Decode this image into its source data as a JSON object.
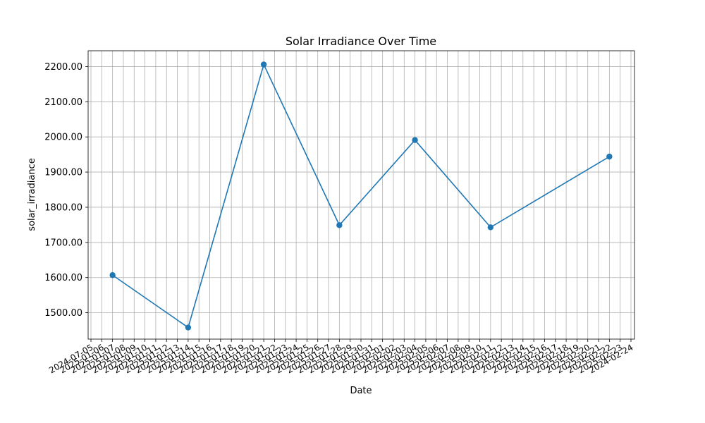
{
  "chart_data": {
    "type": "line",
    "title": "Solar Irradiance Over Time",
    "xlabel": "Date",
    "ylabel": "solar_irradiance",
    "ylim": [
      1425,
      2245
    ],
    "yticks": [
      1500,
      1600,
      1700,
      1800,
      1900,
      2000,
      2100,
      2200
    ],
    "ytick_labels": [
      "1500.00",
      "1600.00",
      "1700.00",
      "1800.00",
      "1900.00",
      "2000.00",
      "2100.00",
      "2200.00"
    ],
    "grid": true,
    "marker": "circle",
    "line_color": "#1f77b4",
    "x_categories": [
      "2024-07-05",
      "2025-01-06",
      "2025-01-07",
      "2025-01-08",
      "2025-01-09",
      "2025-01-10",
      "2025-01-11",
      "2025-01-12",
      "2025-01-13",
      "2025-01-14",
      "2025-01-15",
      "2025-01-16",
      "2025-01-17",
      "2025-01-18",
      "2025-01-19",
      "2025-01-20",
      "2025-01-21",
      "2025-01-22",
      "2025-01-23",
      "2025-01-24",
      "2025-01-25",
      "2025-01-26",
      "2025-01-27",
      "2025-01-28",
      "2025-01-29",
      "2025-01-30",
      "2025-01-31",
      "2025-02-01",
      "2025-02-02",
      "2025-02-03",
      "2025-02-04",
      "2025-02-05",
      "2025-02-06",
      "2025-02-07",
      "2025-02-08",
      "2025-02-09",
      "2025-02-10",
      "2025-02-11",
      "2025-02-12",
      "2025-02-13",
      "2025-02-14",
      "2025-02-15",
      "2025-02-16",
      "2025-02-17",
      "2025-02-18",
      "2025-02-19",
      "2025-02-20",
      "2025-02-21",
      "2025-02-22",
      "2025-02-23",
      "2024-02-24"
    ],
    "series": [
      {
        "name": "solar_irradiance",
        "points": [
          {
            "x": "2025-01-07",
            "y": 1607
          },
          {
            "x": "2025-01-14",
            "y": 1458
          },
          {
            "x": "2025-01-21",
            "y": 2206
          },
          {
            "x": "2025-01-28",
            "y": 1749
          },
          {
            "x": "2025-02-04",
            "y": 1991
          },
          {
            "x": "2025-02-11",
            "y": 1743
          },
          {
            "x": "2025-02-22",
            "y": 1944
          }
        ]
      }
    ]
  }
}
